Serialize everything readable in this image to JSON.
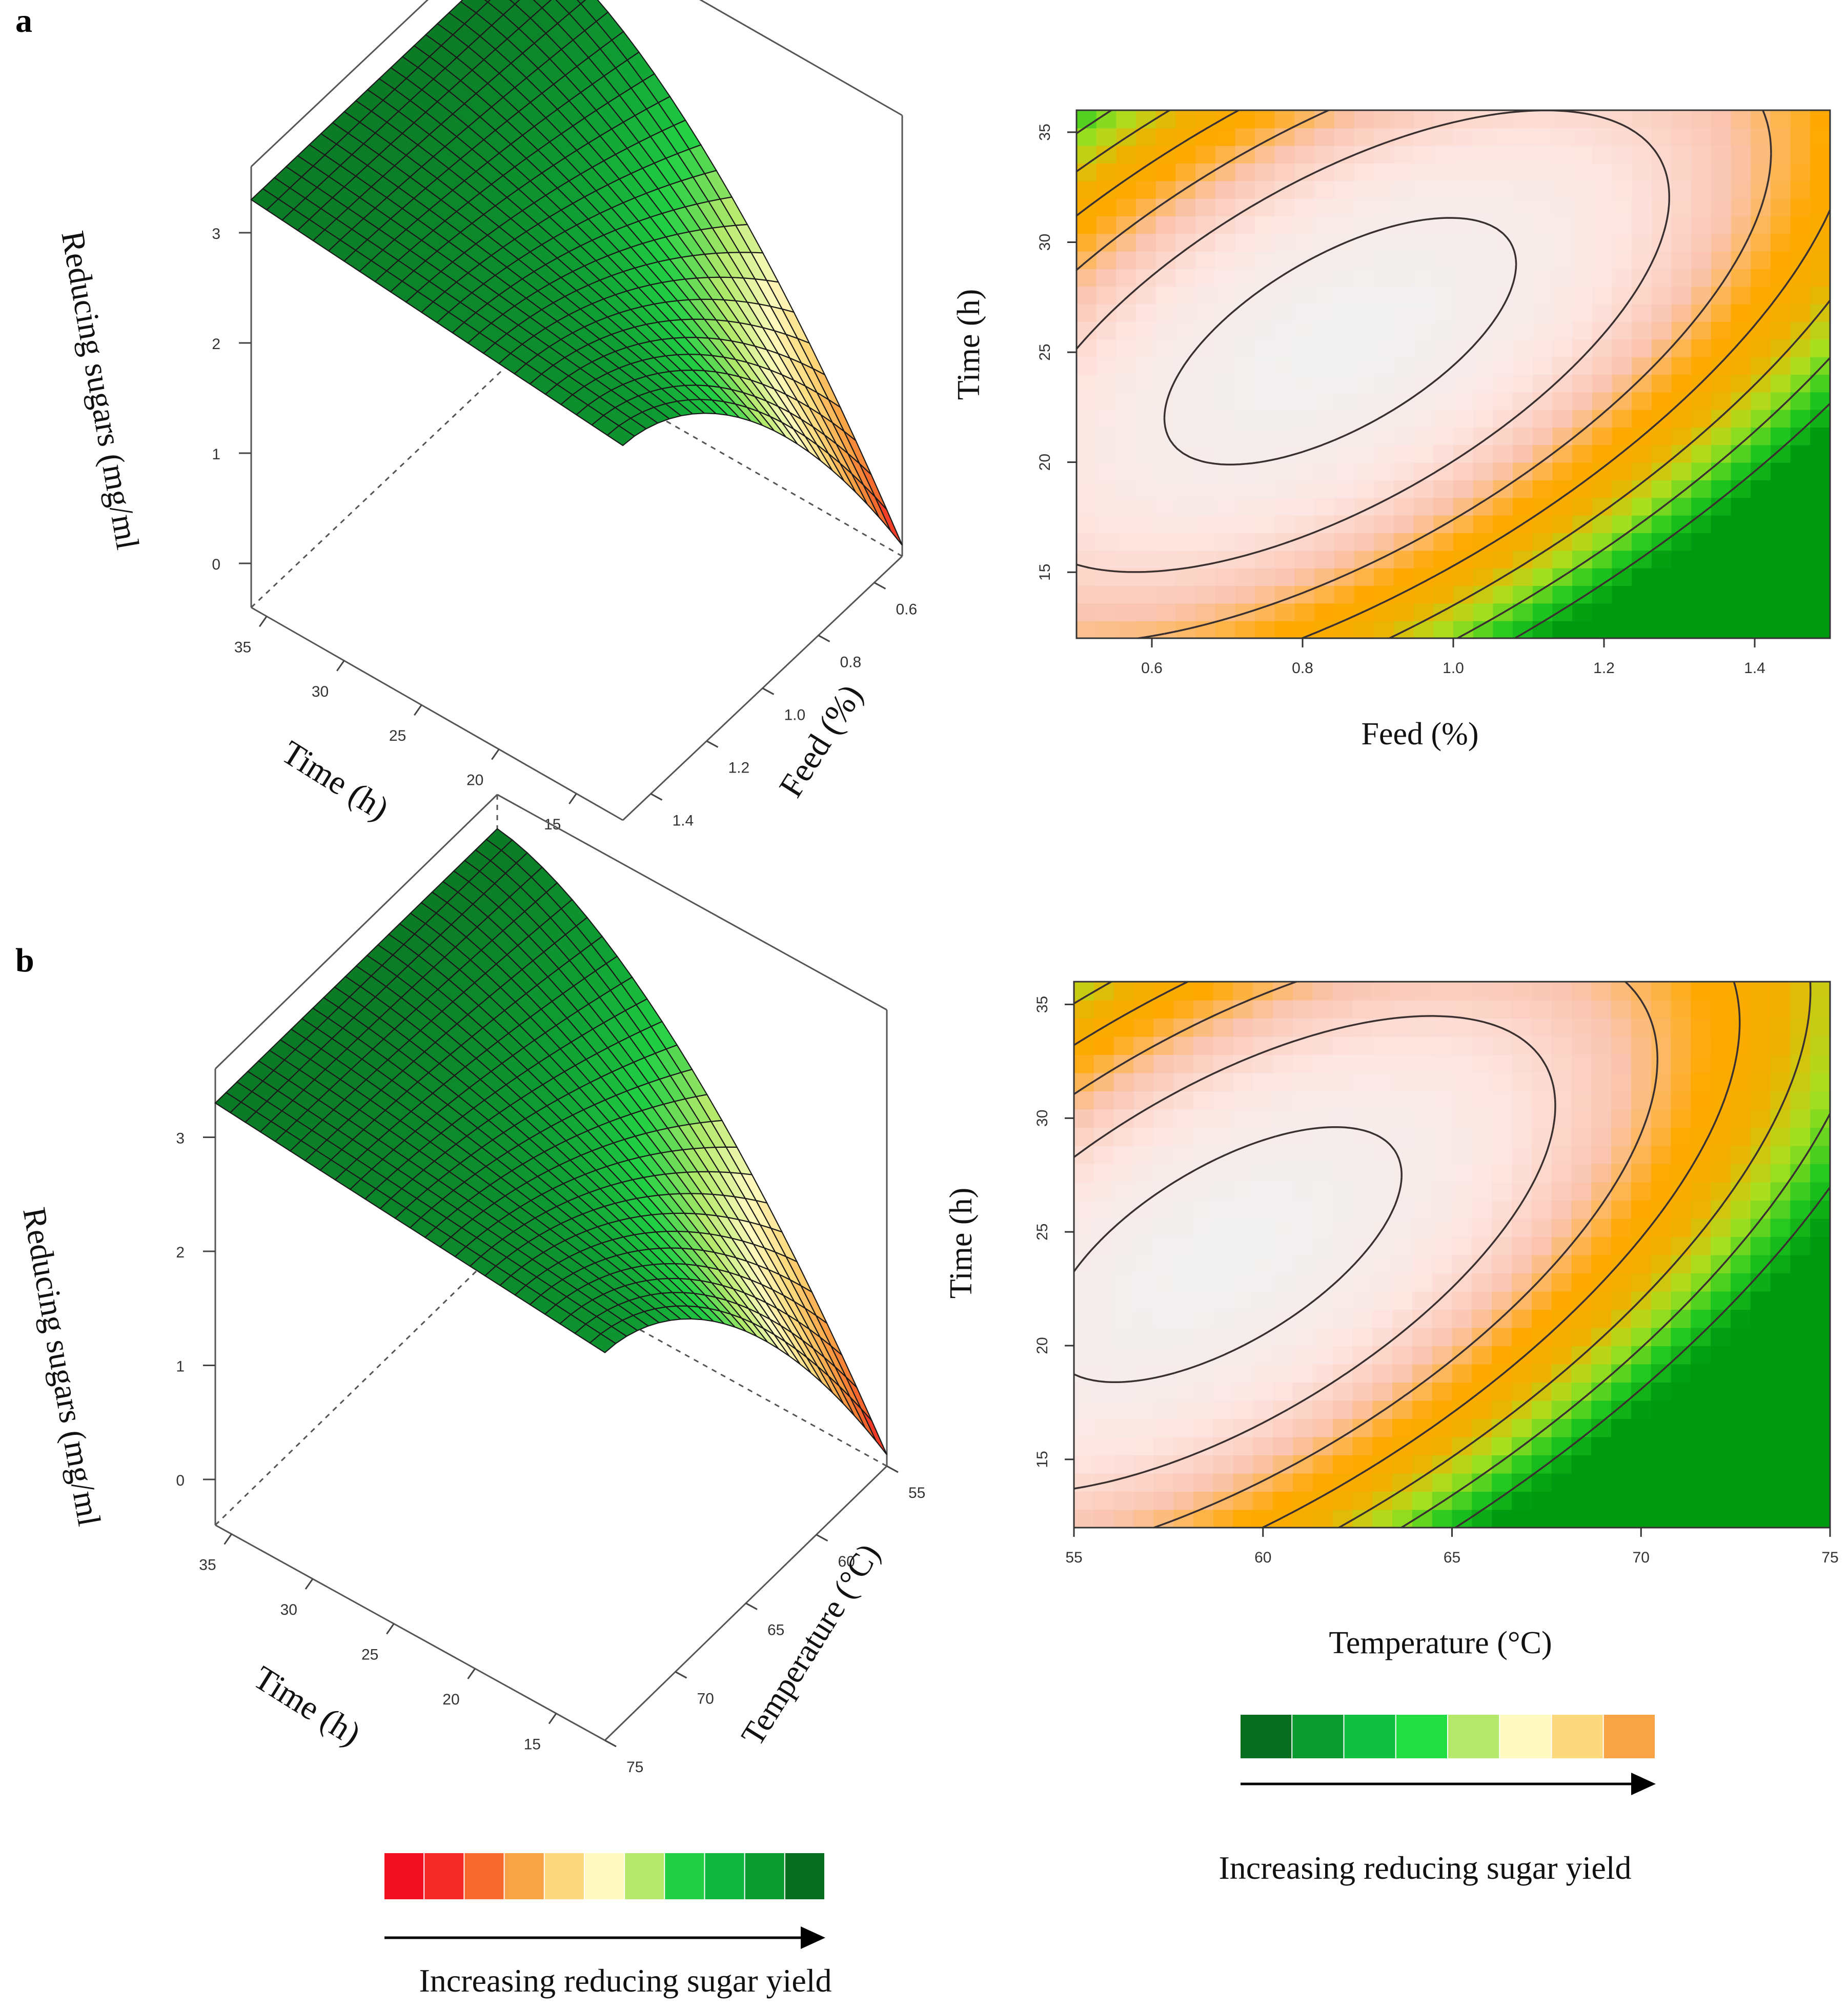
{
  "panels": {
    "a": "a",
    "b": "b"
  },
  "chart_data": [
    {
      "id": "a-surface",
      "type": "surface3d",
      "xlabel": "Time (h)",
      "ylabel": "Feed (%)",
      "zlabel": "Reducing sugars (mg/ml",
      "x_ticks": [
        "35",
        "30",
        "25",
        "20",
        "15"
      ],
      "y_ticks": [
        "0.6",
        "0.8",
        "1.0",
        "1.2",
        "1.4"
      ],
      "z_ticks": [
        "3",
        "2",
        "1",
        "0"
      ],
      "xlim": [
        12,
        36
      ],
      "ylim": [
        0.5,
        1.5
      ],
      "zlim": [
        -0.4,
        3.6
      ]
    },
    {
      "id": "a-contour",
      "type": "heatmap",
      "xlabel": "Feed (%)",
      "ylabel": "Time (h)",
      "x_ticks": [
        "0.6",
        "0.8",
        "1.0",
        "1.2",
        "1.4"
      ],
      "y_ticks": [
        "35",
        "30",
        "25",
        "20",
        "15"
      ],
      "xlim": [
        0.5,
        1.5
      ],
      "ylim": [
        12,
        36
      ],
      "contour_levels": [
        "-0",
        "0.5",
        "1",
        "1.5",
        "2",
        "2.5",
        "3"
      ],
      "max_point": {
        "x": 0.85,
        "y": 25.5,
        "z": 3.2
      }
    },
    {
      "id": "b-surface",
      "type": "surface3d",
      "xlabel": "Time (h)",
      "ylabel": "Temperature (°C)",
      "zlabel": "Reducing sugars (mg/ml",
      "x_ticks": [
        "35",
        "30",
        "25",
        "20",
        "15"
      ],
      "y_ticks": [
        "55",
        "60",
        "65",
        "70",
        "75"
      ],
      "z_ticks": [
        "3",
        "2",
        "1",
        "0"
      ],
      "xlim": [
        12,
        36
      ],
      "ylim": [
        55,
        75
      ],
      "zlim": [
        -0.4,
        3.6
      ]
    },
    {
      "id": "b-contour",
      "type": "heatmap",
      "xlabel": "Temperature (°C)",
      "ylabel": "Time (h)",
      "x_ticks": [
        "55",
        "60",
        "65",
        "70",
        "75"
      ],
      "y_ticks": [
        "35",
        "30",
        "25",
        "20",
        "15"
      ],
      "xlim": [
        55,
        75
      ],
      "ylim": [
        12,
        36
      ],
      "contour_levels": [
        "-0",
        "0.5",
        "1",
        "1.5",
        "2",
        "2.5",
        "3"
      ],
      "max_point": {
        "x": 59,
        "y": 24,
        "z": 3.2
      }
    }
  ],
  "legends": {
    "surface": {
      "caption": "Increasing reducing sugar yield",
      "colors": [
        "#f01020",
        "#f52828",
        "#f66a2e",
        "#f8a446",
        "#fcd97c",
        "#fffac0",
        "#b4e96c",
        "#22cf44",
        "#10b640",
        "#0a9a30",
        "#066e1e"
      ]
    },
    "contour": {
      "caption": "Increasing reducing sugar yield",
      "colors": [
        "#066e1e",
        "#0a9a30",
        "#10c040",
        "#22dd44",
        "#b4e96c",
        "#fffac0",
        "#fcd97c",
        "#f8a446"
      ]
    }
  },
  "colors": {
    "surface_ramp": [
      "#f01020",
      "#f66a2e",
      "#f8a446",
      "#fcd97c",
      "#fffac0",
      "#b4e96c",
      "#22cf44",
      "#0f9e34",
      "#0b7a26"
    ],
    "heat_ramp": [
      "#009a10",
      "#20c820",
      "#a8e020",
      "#f0b000",
      "#ffa800",
      "#fac4b0",
      "#fde6e2",
      "#f0f0f0"
    ]
  }
}
